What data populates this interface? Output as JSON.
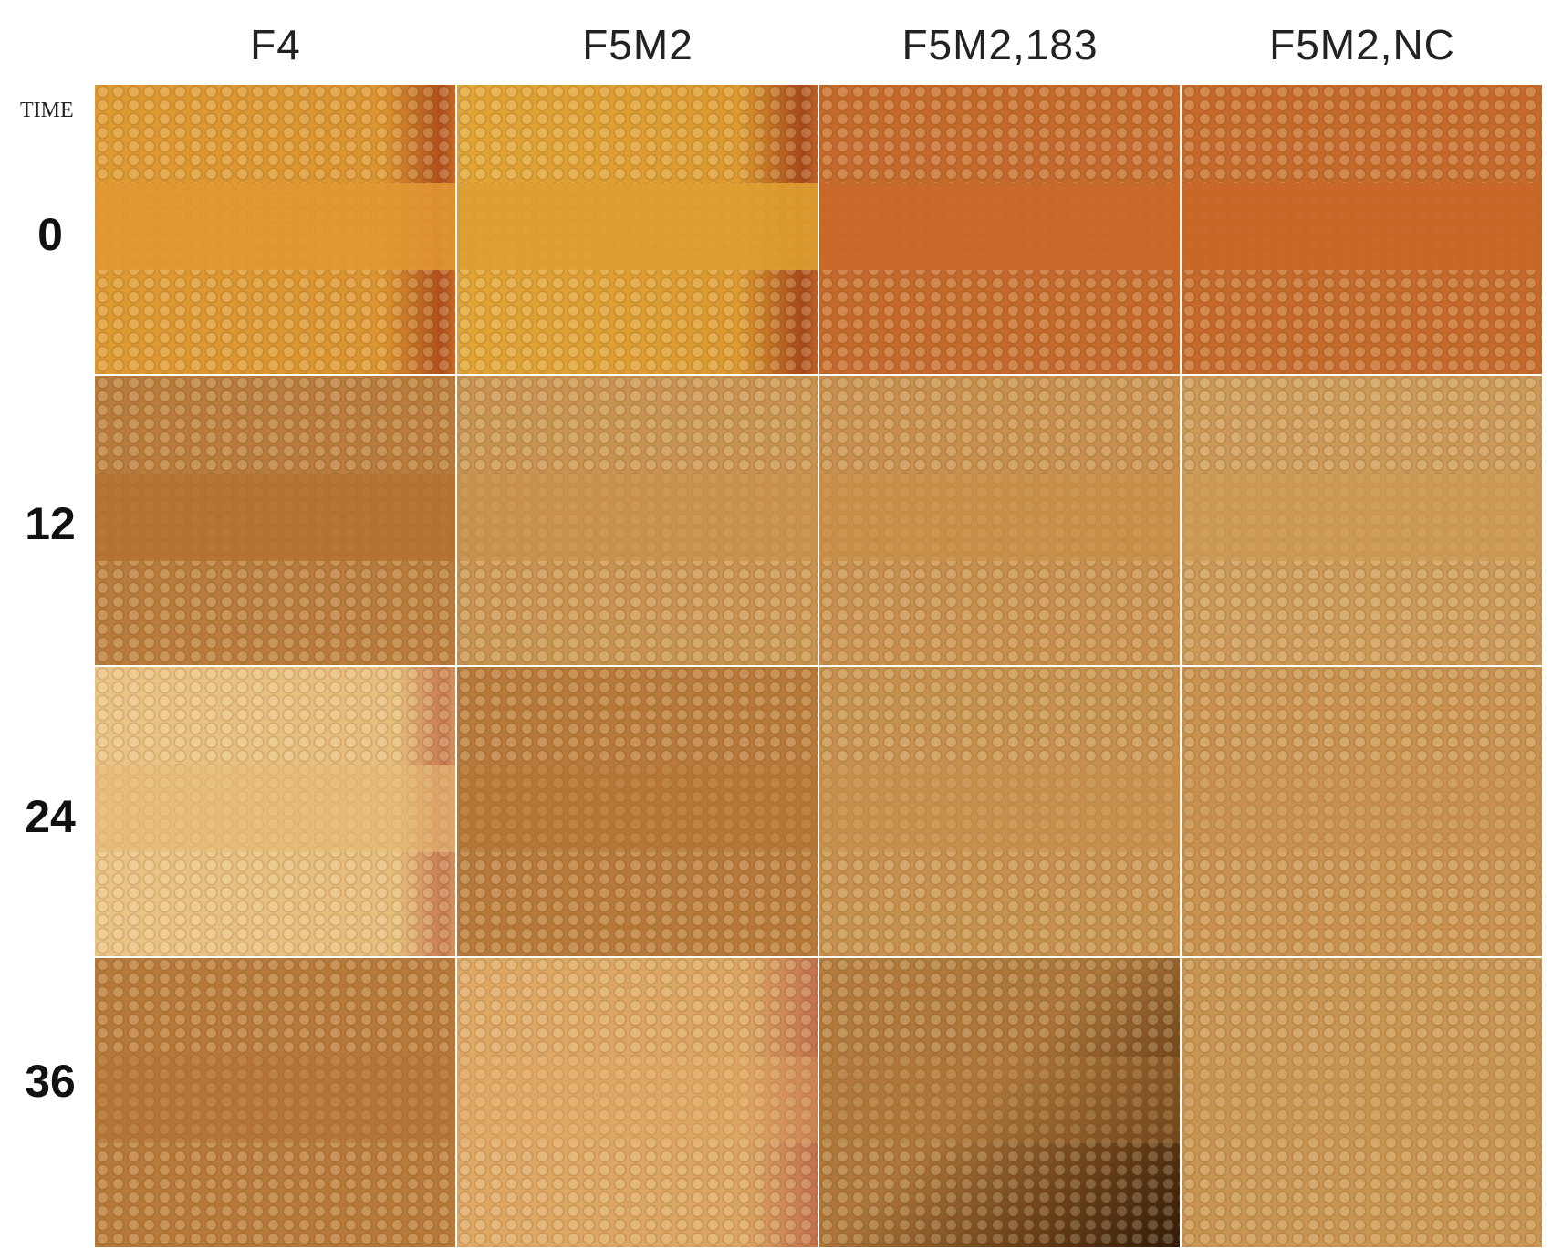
{
  "columns": [
    "F4",
    "F5M2",
    "F5M2,183",
    "F5M2,NC"
  ],
  "row_header": "TIME",
  "rows": [
    "0",
    "12",
    "24",
    "36"
  ]
}
